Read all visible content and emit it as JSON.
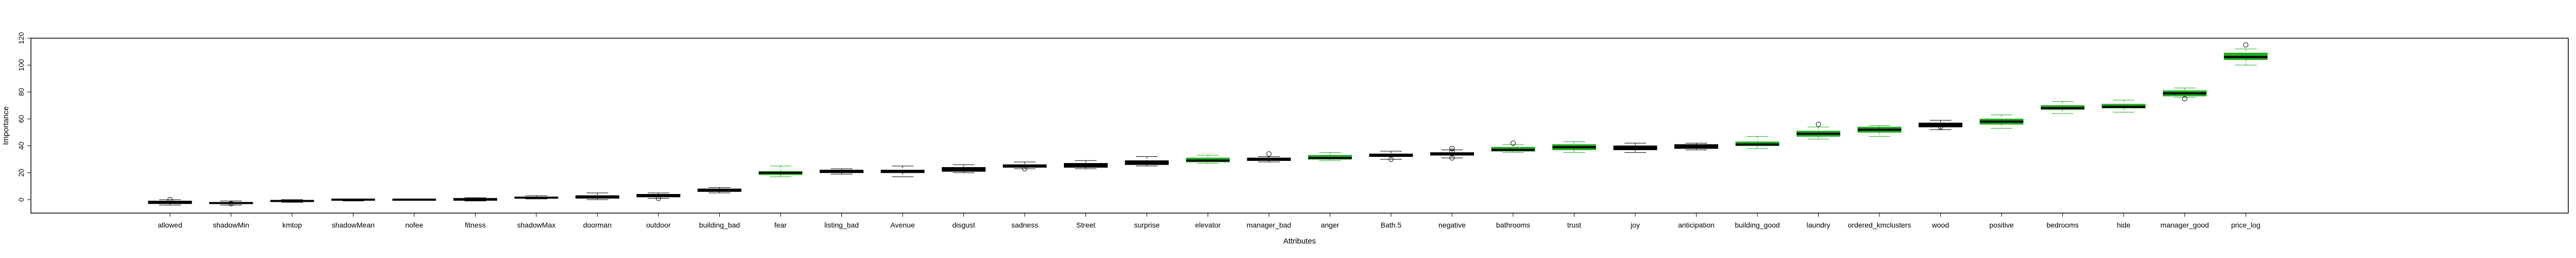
{
  "chart_data": {
    "type": "boxplot",
    "xlabel": "Attributes",
    "ylabel": "Importance",
    "ylim": [
      -10,
      120
    ],
    "yticks": [
      0,
      20,
      40,
      60,
      80,
      100,
      120
    ],
    "colors": {
      "important": "#22aa22",
      "other": "#000000",
      "frame": "#000000"
    },
    "boxes": [
      {
        "name": "allowed",
        "min": -4,
        "q1": -3,
        "median": -2,
        "q3": -1,
        "max": 0,
        "outliers": [
          0
        ]
      },
      {
        "name": "shadowMin",
        "min": -4,
        "q1": -3,
        "median": -2.5,
        "q3": -2,
        "max": -1,
        "outliers": [
          -3
        ]
      },
      {
        "name": "kmtop",
        "min": -2,
        "q1": -1.5,
        "median": -1,
        "q3": -0.5,
        "max": 0,
        "outliers": []
      },
      {
        "name": "shadowMean",
        "min": -1,
        "q1": -0.5,
        "median": 0,
        "q3": 0.3,
        "max": 0.5,
        "outliers": []
      },
      {
        "name": "nofee",
        "min": -0.3,
        "q1": -0.2,
        "median": 0,
        "q3": 0.2,
        "max": 0.3,
        "outliers": []
      },
      {
        "name": "fitness",
        "min": -1,
        "q1": -0.5,
        "median": 0,
        "q3": 1,
        "max": 1.5,
        "outliers": []
      },
      {
        "name": "shadowMax",
        "min": 0.5,
        "q1": 1,
        "median": 1.5,
        "q3": 2,
        "max": 3,
        "outliers": []
      },
      {
        "name": "doorman",
        "min": 0,
        "q1": 1,
        "median": 2,
        "q3": 3,
        "max": 5,
        "outliers": []
      },
      {
        "name": "outdoor",
        "min": 1,
        "q1": 2,
        "median": 3,
        "q3": 4,
        "max": 5,
        "outliers": [
          1
        ]
      },
      {
        "name": "building_bad",
        "min": 5,
        "q1": 6,
        "median": 7,
        "q3": 8,
        "max": 9,
        "outliers": []
      },
      {
        "name": "fear",
        "min": 17,
        "q1": 18.5,
        "median": 20,
        "q3": 21,
        "max": 25,
        "outliers": [],
        "important": true
      },
      {
        "name": "listing_bad",
        "min": 19,
        "q1": 20,
        "median": 21,
        "q3": 22,
        "max": 23,
        "outliers": []
      },
      {
        "name": "Avenue",
        "min": 17,
        "q1": 20,
        "median": 21,
        "q3": 22,
        "max": 25,
        "outliers": []
      },
      {
        "name": "disgust",
        "min": 20,
        "q1": 21,
        "median": 22,
        "q3": 24,
        "max": 26,
        "outliers": []
      },
      {
        "name": "sadness",
        "min": 23,
        "q1": 24,
        "median": 25,
        "q3": 26,
        "max": 28,
        "outliers": [
          23
        ]
      },
      {
        "name": "Street",
        "min": 23,
        "q1": 24,
        "median": 25,
        "q3": 27,
        "max": 29,
        "outliers": []
      },
      {
        "name": "surprise",
        "min": 25,
        "q1": 26,
        "median": 27,
        "q3": 29,
        "max": 32,
        "outliers": []
      },
      {
        "name": "elevator",
        "min": 27,
        "q1": 28,
        "median": 29,
        "q3": 31,
        "max": 33,
        "outliers": [],
        "important": true
      },
      {
        "name": "manager_bad",
        "min": 28,
        "q1": 29,
        "median": 30,
        "q3": 31,
        "max": 32,
        "outliers": [
          34
        ]
      },
      {
        "name": "anger",
        "min": 29,
        "q1": 30,
        "median": 31,
        "q3": 33,
        "max": 35,
        "outliers": [],
        "important": true
      },
      {
        "name": "Bath.5",
        "min": 30,
        "q1": 32,
        "median": 33,
        "q3": 34,
        "max": 36,
        "outliers": [
          30
        ]
      },
      {
        "name": "negative",
        "min": 31,
        "q1": 33,
        "median": 34,
        "q3": 35,
        "max": 37,
        "outliers": [
          31,
          36,
          38
        ]
      },
      {
        "name": "bathrooms",
        "min": 35,
        "q1": 36,
        "median": 37,
        "q3": 39,
        "max": 41,
        "outliers": [
          42
        ],
        "important": true
      },
      {
        "name": "trust",
        "min": 35,
        "q1": 37,
        "median": 39,
        "q3": 41,
        "max": 43,
        "outliers": [],
        "important": true
      },
      {
        "name": "joy",
        "min": 35,
        "q1": 37,
        "median": 39,
        "q3": 40,
        "max": 42,
        "outliers": []
      },
      {
        "name": "anticipation",
        "min": 37,
        "q1": 38,
        "median": 39,
        "q3": 41,
        "max": 42,
        "outliers": []
      },
      {
        "name": "building_good",
        "min": 38,
        "q1": 40,
        "median": 41,
        "q3": 43,
        "max": 47,
        "outliers": [],
        "important": true
      },
      {
        "name": "laundry",
        "min": 45,
        "q1": 47,
        "median": 49,
        "q3": 51,
        "max": 54,
        "outliers": [
          56
        ],
        "important": true
      },
      {
        "name": "ordered_kmclusters",
        "min": 47,
        "q1": 50,
        "median": 52,
        "q3": 54,
        "max": 55,
        "outliers": [],
        "important": true
      },
      {
        "name": "wood",
        "min": 52,
        "q1": 54,
        "median": 55,
        "q3": 57,
        "max": 59,
        "outliers": [
          54
        ]
      },
      {
        "name": "positive",
        "min": 53,
        "q1": 56,
        "median": 58,
        "q3": 60,
        "max": 63,
        "outliers": [],
        "important": true
      },
      {
        "name": "bedrooms",
        "min": 64,
        "q1": 67,
        "median": 68,
        "q3": 70,
        "max": 73,
        "outliers": [],
        "important": true
      },
      {
        "name": "hide",
        "min": 65,
        "q1": 68,
        "median": 69,
        "q3": 71,
        "max": 74,
        "outliers": [],
        "important": true
      },
      {
        "name": "manager_good",
        "min": 76,
        "q1": 77,
        "median": 79,
        "q3": 81,
        "max": 83,
        "outliers": [
          75
        ],
        "important": true
      },
      {
        "name": "price_log",
        "min": 100,
        "q1": 104,
        "median": 106,
        "q3": 109,
        "max": 112,
        "outliers": [
          115
        ],
        "important": true
      }
    ]
  }
}
